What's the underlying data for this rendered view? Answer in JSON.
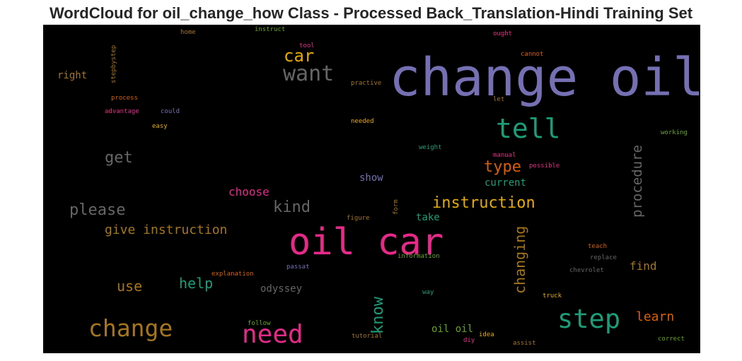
{
  "chart_data": {
    "type": "wordcloud",
    "title": "WordCloud for oil_change_how Class - Processed Back_Translation-Hindi Training Set",
    "background": "#000000",
    "words": [
      {
        "text": "change oil",
        "color": "#7570b3",
        "orientation": "horizontal"
      },
      {
        "text": "oil car",
        "color": "#e7298a",
        "orientation": "horizontal"
      },
      {
        "text": "tell",
        "color": "#1b9e77",
        "orientation": "horizontal"
      },
      {
        "text": "step",
        "color": "#1b9e77",
        "orientation": "horizontal"
      },
      {
        "text": "need",
        "color": "#e7298a",
        "orientation": "horizontal"
      },
      {
        "text": "change",
        "color": "#a6761d",
        "orientation": "horizontal"
      },
      {
        "text": "want",
        "color": "#666666",
        "orientation": "horizontal"
      },
      {
        "text": "car",
        "color": "#e6ab02",
        "orientation": "horizontal"
      },
      {
        "text": "instruction",
        "color": "#e6ab02",
        "orientation": "horizontal"
      },
      {
        "text": "please",
        "color": "#666666",
        "orientation": "horizontal"
      },
      {
        "text": "kind",
        "color": "#666666",
        "orientation": "horizontal"
      },
      {
        "text": "type",
        "color": "#d95f02",
        "orientation": "horizontal"
      },
      {
        "text": "get",
        "color": "#666666",
        "orientation": "horizontal"
      },
      {
        "text": "give instruction",
        "color": "#a6761d",
        "orientation": "horizontal"
      },
      {
        "text": "help",
        "color": "#1b9e77",
        "orientation": "horizontal"
      },
      {
        "text": "use",
        "color": "#a6761d",
        "orientation": "horizontal"
      },
      {
        "text": "learn",
        "color": "#d95f02",
        "orientation": "horizontal"
      },
      {
        "text": "find",
        "color": "#a6761d",
        "orientation": "horizontal"
      },
      {
        "text": "choose",
        "color": "#e7298a",
        "orientation": "horizontal"
      },
      {
        "text": "know",
        "color": "#1b9e77",
        "orientation": "vertical"
      },
      {
        "text": "changing",
        "color": "#a6761d",
        "orientation": "vertical"
      },
      {
        "text": "procedure",
        "color": "#666666",
        "orientation": "vertical"
      },
      {
        "text": "current",
        "color": "#1b9e77",
        "orientation": "horizontal"
      },
      {
        "text": "show",
        "color": "#7570b3",
        "orientation": "horizontal"
      },
      {
        "text": "take",
        "color": "#1b9e77",
        "orientation": "horizontal"
      },
      {
        "text": "odyssey",
        "color": "#666666",
        "orientation": "horizontal"
      },
      {
        "text": "oil oil",
        "color": "#66a61e",
        "orientation": "horizontal"
      },
      {
        "text": "right",
        "color": "#a6761d",
        "orientation": "horizontal"
      },
      {
        "text": "home",
        "color": "#a6761d",
        "orientation": "horizontal"
      },
      {
        "text": "instruct",
        "color": "#66a61e",
        "orientation": "horizontal"
      },
      {
        "text": "tool",
        "color": "#e7298a",
        "orientation": "horizontal"
      },
      {
        "text": "ought",
        "color": "#e7298a",
        "orientation": "horizontal"
      },
      {
        "text": "cannot",
        "color": "#d95f02",
        "orientation": "horizontal"
      },
      {
        "text": "stepbystep",
        "color": "#a6761d",
        "orientation": "vertical"
      },
      {
        "text": "process",
        "color": "#d95f02",
        "orientation": "horizontal"
      },
      {
        "text": "practive",
        "color": "#a6761d",
        "orientation": "horizontal"
      },
      {
        "text": "let",
        "color": "#a6761d",
        "orientation": "horizontal"
      },
      {
        "text": "advantage",
        "color": "#e7298a",
        "orientation": "horizontal"
      },
      {
        "text": "could",
        "color": "#7570b3",
        "orientation": "horizontal"
      },
      {
        "text": "easy",
        "color": "#e6ab02",
        "orientation": "horizontal"
      },
      {
        "text": "needed",
        "color": "#e6ab02",
        "orientation": "horizontal"
      },
      {
        "text": "working",
        "color": "#66a61e",
        "orientation": "horizontal"
      },
      {
        "text": "weight",
        "color": "#1b9e77",
        "orientation": "horizontal"
      },
      {
        "text": "manual",
        "color": "#e7298a",
        "orientation": "horizontal"
      },
      {
        "text": "possible",
        "color": "#e7298a",
        "orientation": "horizontal"
      },
      {
        "text": "form",
        "color": "#a6761d",
        "orientation": "vertical"
      },
      {
        "text": "figure",
        "color": "#a6761d",
        "orientation": "horizontal"
      },
      {
        "text": "information",
        "color": "#66a61e",
        "orientation": "horizontal"
      },
      {
        "text": "teach",
        "color": "#d95f02",
        "orientation": "horizontal"
      },
      {
        "text": "replace",
        "color": "#666666",
        "orientation": "horizontal"
      },
      {
        "text": "chevrolet",
        "color": "#666666",
        "orientation": "horizontal"
      },
      {
        "text": "explanation",
        "color": "#d95f02",
        "orientation": "horizontal"
      },
      {
        "text": "passat",
        "color": "#7570b3",
        "orientation": "horizontal"
      },
      {
        "text": "way",
        "color": "#1b9e77",
        "orientation": "horizontal"
      },
      {
        "text": "truck",
        "color": "#e6ab02",
        "orientation": "horizontal"
      },
      {
        "text": "follow",
        "color": "#66a61e",
        "orientation": "horizontal"
      },
      {
        "text": "tutorial",
        "color": "#a6761d",
        "orientation": "horizontal"
      },
      {
        "text": "idea",
        "color": "#e6ab02",
        "orientation": "horizontal"
      },
      {
        "text": "diy",
        "color": "#e7298a",
        "orientation": "horizontal"
      },
      {
        "text": "assist",
        "color": "#a6761d",
        "orientation": "horizontal"
      },
      {
        "text": "correct",
        "color": "#66a61e",
        "orientation": "horizontal"
      }
    ]
  }
}
